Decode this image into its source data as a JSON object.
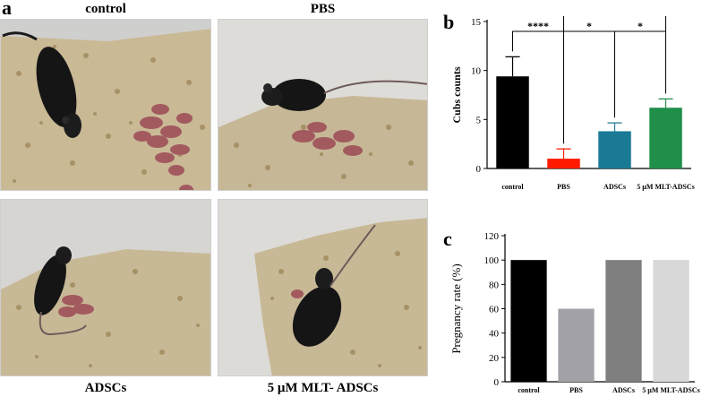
{
  "panel_labels": {
    "a": "a",
    "b": "b",
    "c": "c"
  },
  "photos": [
    {
      "caption": "control"
    },
    {
      "caption": "PBS"
    },
    {
      "caption": "ADSCs"
    },
    {
      "caption": "5 μM MLT- ADSCs"
    }
  ],
  "chart_data": [
    {
      "type": "bar",
      "panel": "b",
      "categories": [
        "control",
        "PBS",
        "ADSCs",
        "5 μM MLT-ADSCs"
      ],
      "values": [
        9.4,
        1.0,
        3.8,
        6.2
      ],
      "errors": [
        2.0,
        1.0,
        0.85,
        0.9
      ],
      "colors": [
        "#000000",
        "#ff1a00",
        "#1a7a96",
        "#1f8f4a"
      ],
      "ylabel": "Cubs counts",
      "xlabel": "",
      "ylim": [
        0,
        15
      ],
      "yticks": [
        0,
        5,
        10,
        15
      ],
      "significance": [
        {
          "from": 0,
          "to": 1,
          "label": "****"
        },
        {
          "from": 1,
          "to": 2,
          "label": "*"
        },
        {
          "from": 2,
          "to": 3,
          "label": "*"
        },
        {
          "from": 1,
          "to": 3,
          "label": "****"
        }
      ]
    },
    {
      "type": "bar",
      "panel": "c",
      "categories": [
        "control",
        "PBS",
        "ADSCs",
        "5 μM MLT-ADSCs"
      ],
      "values": [
        100,
        60,
        100,
        100
      ],
      "colors": [
        "#000000",
        "#a2a2a8",
        "#7e7e7e",
        "#d8d8d8"
      ],
      "ylabel": "Pregnancy rate (%)",
      "xlabel": "",
      "ylim": [
        0,
        120
      ],
      "yticks": [
        0,
        20,
        40,
        60,
        80,
        100,
        120
      ]
    }
  ]
}
